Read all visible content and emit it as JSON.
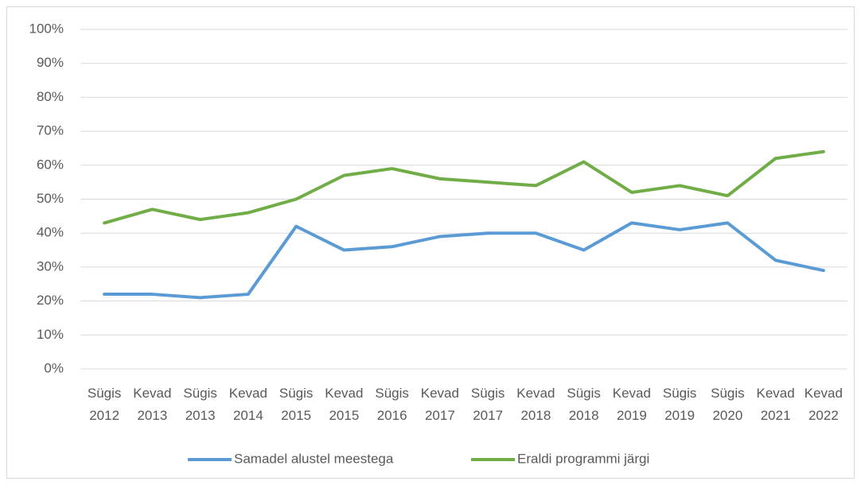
{
  "chart_data": {
    "type": "line",
    "categories": [
      "Sügis\n2012",
      "Kevad\n2013",
      "Sügis\n2013",
      "Kevad\n2014",
      "Sügis\n2015",
      "Kevad\n2015",
      "Sügis\n2016",
      "Kevad\n2017",
      "Sügis\n2017",
      "Kevad\n2018",
      "Sügis\n2018",
      "Kevad\n2019",
      "Sügis\n2019",
      "Sügis\n2020",
      "Kevad\n2021",
      "Kevad\n2022"
    ],
    "series": [
      {
        "name": "Samadel alustel meestega",
        "color": "#5b9bd5",
        "values": [
          22,
          22,
          21,
          22,
          42,
          35,
          36,
          39,
          40,
          40,
          35,
          43,
          41,
          43,
          32,
          29
        ]
      },
      {
        "name": "Eraldi programmi järgi",
        "color": "#70ad47",
        "values": [
          43,
          47,
          44,
          46,
          50,
          57,
          59,
          56,
          55,
          54,
          61,
          52,
          54,
          51,
          62,
          64
        ]
      }
    ],
    "ylim": [
      0,
      100
    ],
    "yticks": [
      {
        "value": 0,
        "label": "0%"
      },
      {
        "value": 10,
        "label": "10%"
      },
      {
        "value": 20,
        "label": "20%"
      },
      {
        "value": 30,
        "label": "30%"
      },
      {
        "value": 40,
        "label": "40%"
      },
      {
        "value": 50,
        "label": "50%"
      },
      {
        "value": 60,
        "label": "60%"
      },
      {
        "value": 70,
        "label": "70%"
      },
      {
        "value": 80,
        "label": "80%"
      },
      {
        "value": 90,
        "label": "90%"
      },
      {
        "value": 100,
        "label": "100%"
      }
    ],
    "grid": true,
    "legend": "bottom"
  }
}
